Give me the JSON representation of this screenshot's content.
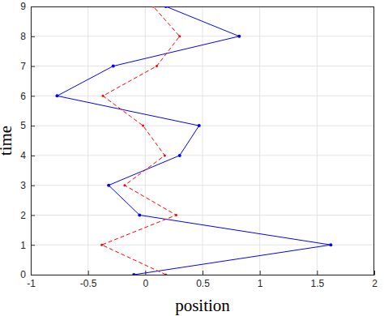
{
  "chart_data": {
    "type": "line",
    "x_label": "position",
    "y_label": "time",
    "xlim": [
      -1,
      2
    ],
    "ylim": [
      0,
      9
    ],
    "xticks": [
      -1,
      -0.5,
      0,
      0.5,
      1,
      1.5,
      2
    ],
    "yticks": [
      0,
      1,
      2,
      3,
      4,
      5,
      6,
      7,
      8,
      9
    ],
    "grid": true,
    "series": [
      {
        "color": "#0000ff",
        "line_style": "solid",
        "marker": "dot",
        "x": [
          -0.1,
          1.62,
          -0.05,
          -0.32,
          0.3,
          0.47,
          -0.77,
          -0.28,
          0.82,
          0.18
        ],
        "values": [
          0,
          1,
          2,
          3,
          4,
          5,
          6,
          7,
          8,
          9
        ]
      },
      {
        "color": "#ff0000",
        "line_style": "dashed",
        "marker": "dot",
        "x": [
          0.18,
          -0.38,
          0.27,
          -0.18,
          0.17,
          -0.02,
          -0.37,
          0.1,
          0.3,
          0.07
        ],
        "values": [
          0,
          1,
          2,
          3,
          4,
          5,
          6,
          7,
          8,
          9
        ]
      }
    ]
  }
}
